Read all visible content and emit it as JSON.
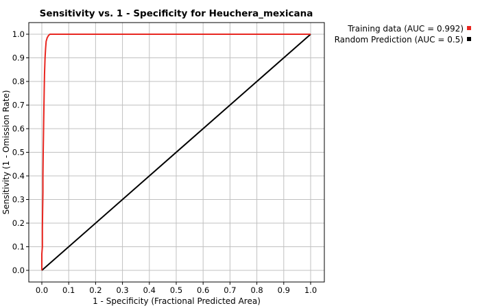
{
  "chart_data": {
    "type": "line",
    "title": "Sensitivity vs. 1 - Specificity for Heuchera_mexicana",
    "xlabel": "1 - Specificity  (Fractional Predicted Area)",
    "ylabel": "Sensitivity  (1 - Omission Rate)",
    "xlim": [
      0,
      1
    ],
    "ylim": [
      0,
      1
    ],
    "xticks": [
      "0.0",
      "0.1",
      "0.2",
      "0.3",
      "0.4",
      "0.5",
      "0.6",
      "0.7",
      "0.8",
      "0.9",
      "1.0"
    ],
    "yticks": [
      "0.0",
      "0.1",
      "0.2",
      "0.3",
      "0.4",
      "0.5",
      "0.6",
      "0.7",
      "0.8",
      "0.9",
      "1.0"
    ],
    "grid": true,
    "legend_position": "top-right outside",
    "series": [
      {
        "name": "Training data (AUC = 0.992)",
        "color": "#e8251f",
        "points": [
          [
            0.0,
            0.0
          ],
          [
            0.0,
            0.03
          ],
          [
            0.0,
            0.07
          ],
          [
            0.002,
            0.1
          ],
          [
            0.002,
            0.18
          ],
          [
            0.003,
            0.26
          ],
          [
            0.004,
            0.33
          ],
          [
            0.004,
            0.4
          ],
          [
            0.005,
            0.5
          ],
          [
            0.006,
            0.57
          ],
          [
            0.007,
            0.63
          ],
          [
            0.008,
            0.7
          ],
          [
            0.009,
            0.77
          ],
          [
            0.01,
            0.83
          ],
          [
            0.012,
            0.9
          ],
          [
            0.014,
            0.94
          ],
          [
            0.016,
            0.97
          ],
          [
            0.02,
            0.985
          ],
          [
            0.025,
            0.995
          ],
          [
            0.03,
            1.0
          ],
          [
            1.0,
            1.0
          ]
        ]
      },
      {
        "name": "Random Prediction (AUC = 0.5)",
        "color": "#000000",
        "points": [
          [
            0,
            0
          ],
          [
            1,
            1
          ]
        ]
      }
    ]
  }
}
